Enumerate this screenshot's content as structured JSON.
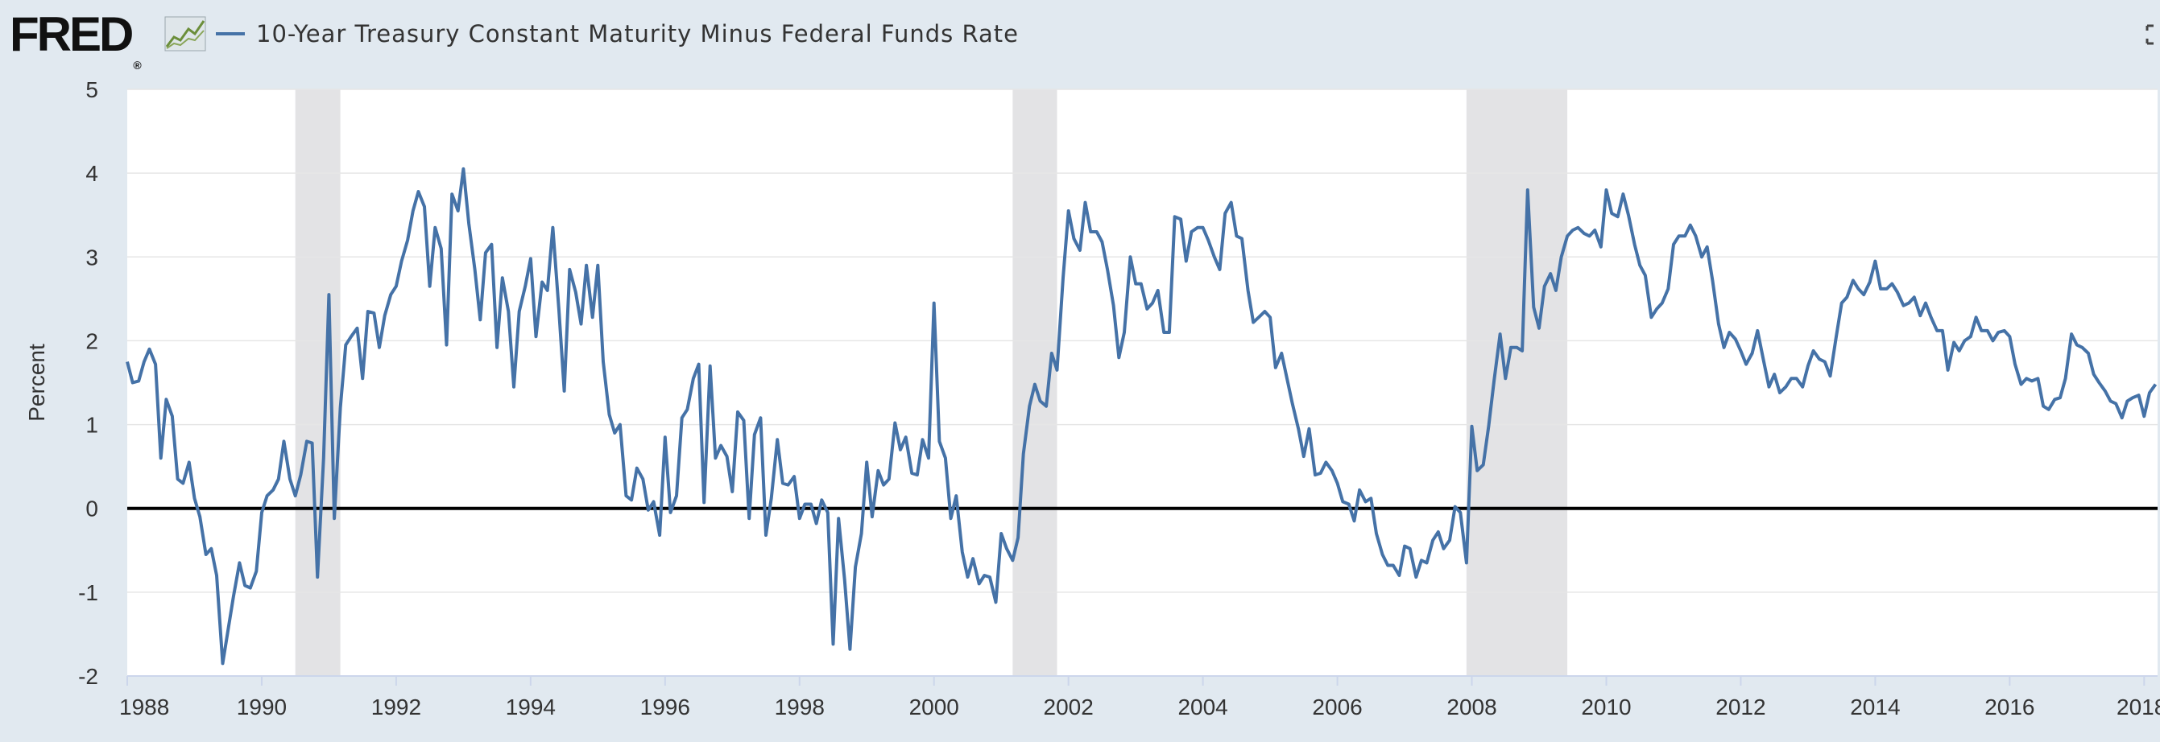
{
  "header": {
    "logo_text": "FRED",
    "logo_reg": "®",
    "title": "10-Year Treasury Constant Maturity Minus Federal Funds Rate"
  },
  "icons": [
    "fred-logo",
    "sparkline-icon",
    "fullscreen-icon"
  ],
  "colors": {
    "series": "#4572a7",
    "plot_bg": "#ffffff",
    "page_bg": "#e1e9f0",
    "recession": "#e3e3e5",
    "zero_line": "#000000"
  },
  "chart_data": {
    "type": "line",
    "title": "10-Year Treasury Constant Maturity Minus Federal Funds Rate",
    "xlabel": "",
    "ylabel": "Percent",
    "xlim": [
      1988,
      2018.2
    ],
    "ylim": [
      -2,
      5
    ],
    "yticks": [
      -2,
      -1,
      0,
      1,
      2,
      3,
      4,
      5
    ],
    "xticks": [
      1988,
      1990,
      1992,
      1994,
      1996,
      1998,
      2000,
      2002,
      2004,
      2006,
      2008,
      2010,
      2012,
      2014,
      2016,
      2018
    ],
    "grid": true,
    "recessions": [
      [
        1990.5,
        1991.17
      ],
      [
        2001.17,
        2001.83
      ],
      [
        2007.92,
        2009.42
      ]
    ],
    "series": [
      {
        "name": "10-Year Treasury Constant Maturity Minus Federal Funds Rate",
        "x": [
          1988.0,
          1988.08,
          1988.17,
          1988.25,
          1988.33,
          1988.42,
          1988.5,
          1988.58,
          1988.67,
          1988.75,
          1988.83,
          1988.92,
          1989.0,
          1989.08,
          1989.17,
          1989.25,
          1989.33,
          1989.42,
          1989.5,
          1989.58,
          1989.67,
          1989.75,
          1989.83,
          1989.92,
          1990.0,
          1990.08,
          1990.17,
          1990.25,
          1990.33,
          1990.42,
          1990.5,
          1990.58,
          1990.67,
          1990.75,
          1990.83,
          1990.92,
          1991.0,
          1991.08,
          1991.17,
          1991.25,
          1991.33,
          1991.42,
          1991.5,
          1991.58,
          1991.67,
          1991.75,
          1991.83,
          1991.92,
          1992.0,
          1992.08,
          1992.17,
          1992.25,
          1992.33,
          1992.42,
          1992.5,
          1992.58,
          1992.67,
          1992.75,
          1992.83,
          1992.92,
          1993.0,
          1993.08,
          1993.17,
          1993.25,
          1993.33,
          1993.42,
          1993.5,
          1993.58,
          1993.67,
          1993.75,
          1993.83,
          1993.92,
          1994.0,
          1994.08,
          1994.17,
          1994.25,
          1994.33,
          1994.42,
          1994.5,
          1994.58,
          1994.67,
          1994.75,
          1994.83,
          1994.92,
          1995.0,
          1995.08,
          1995.17,
          1995.25,
          1995.33,
          1995.42,
          1995.5,
          1995.58,
          1995.67,
          1995.75,
          1995.83,
          1995.92,
          1996.0,
          1996.08,
          1996.17,
          1996.25,
          1996.33,
          1996.42,
          1996.5,
          1996.58,
          1996.67,
          1996.75,
          1996.83,
          1996.92,
          1997.0,
          1997.08,
          1997.17,
          1997.25,
          1997.33,
          1997.42,
          1997.5,
          1997.58,
          1997.67,
          1997.75,
          1997.83,
          1997.92,
          1998.0,
          1998.08,
          1998.17,
          1998.25,
          1998.33,
          1998.42,
          1998.5,
          1998.58,
          1998.67,
          1998.75,
          1998.83,
          1998.92,
          1999.0,
          1999.08,
          1999.17,
          1999.25,
          1999.33,
          1999.42,
          1999.5,
          1999.58,
          1999.67,
          1999.75,
          1999.83,
          1999.92,
          2000.0,
          2000.08,
          2000.17,
          2000.25,
          2000.33,
          2000.42,
          2000.5,
          2000.58,
          2000.67,
          2000.75,
          2000.83,
          2000.92,
          2001.0,
          2001.08,
          2001.17,
          2001.25,
          2001.33,
          2001.42,
          2001.5,
          2001.58,
          2001.67,
          2001.75,
          2001.83,
          2001.92,
          2002.0,
          2002.08,
          2002.17,
          2002.25,
          2002.33,
          2002.42,
          2002.5,
          2002.58,
          2002.67,
          2002.75,
          2002.83,
          2002.92,
          2003.0,
          2003.08,
          2003.17,
          2003.25,
          2003.33,
          2003.42,
          2003.5,
          2003.58,
          2003.67,
          2003.75,
          2003.83,
          2003.92,
          2004.0,
          2004.08,
          2004.17,
          2004.25,
          2004.33,
          2004.42,
          2004.5,
          2004.58,
          2004.67,
          2004.75,
          2004.83,
          2004.92,
          2005.0,
          2005.08,
          2005.17,
          2005.25,
          2005.33,
          2005.42,
          2005.5,
          2005.58,
          2005.67,
          2005.75,
          2005.83,
          2005.92,
          2006.0,
          2006.08,
          2006.17,
          2006.25,
          2006.33,
          2006.42,
          2006.5,
          2006.58,
          2006.67,
          2006.75,
          2006.83,
          2006.92,
          2007.0,
          2007.08,
          2007.17,
          2007.25,
          2007.33,
          2007.42,
          2007.5,
          2007.58,
          2007.67,
          2007.75,
          2007.83,
          2007.92,
          2008.0,
          2008.08,
          2008.17,
          2008.25,
          2008.33,
          2008.42,
          2008.5,
          2008.58,
          2008.67,
          2008.75,
          2008.83,
          2008.92,
          2009.0,
          2009.08,
          2009.17,
          2009.25,
          2009.33,
          2009.42,
          2009.5,
          2009.58,
          2009.67,
          2009.75,
          2009.83,
          2009.92,
          2010.0,
          2010.08,
          2010.17,
          2010.25,
          2010.33,
          2010.42,
          2010.5,
          2010.58,
          2010.67,
          2010.75,
          2010.83,
          2010.92,
          2011.0,
          2011.08,
          2011.17,
          2011.25,
          2011.33,
          2011.42,
          2011.5,
          2011.58,
          2011.67,
          2011.75,
          2011.83,
          2011.92,
          2012.0,
          2012.08,
          2012.17,
          2012.25,
          2012.33,
          2012.42,
          2012.5,
          2012.58,
          2012.67,
          2012.75,
          2012.83,
          2012.92,
          2013.0,
          2013.08,
          2013.17,
          2013.25,
          2013.33,
          2013.42,
          2013.5,
          2013.58,
          2013.67,
          2013.75,
          2013.83,
          2013.92,
          2014.0,
          2014.08,
          2014.17,
          2014.25,
          2014.33,
          2014.42,
          2014.5,
          2014.58,
          2014.67,
          2014.75,
          2014.83,
          2014.92,
          2015.0,
          2015.08,
          2015.17,
          2015.25,
          2015.33,
          2015.42,
          2015.5,
          2015.58,
          2015.67,
          2015.75,
          2015.83,
          2015.92,
          2016.0,
          2016.08,
          2016.17,
          2016.25,
          2016.33,
          2016.42,
          2016.5,
          2016.58,
          2016.67,
          2016.75,
          2016.83,
          2016.92,
          2017.0,
          2017.08,
          2017.17,
          2017.25,
          2017.33,
          2017.42,
          2017.5,
          2017.58,
          2017.67,
          2017.75,
          2017.83,
          2017.92,
          2018.0,
          2018.08,
          2018.17
        ],
        "values": [
          1.75,
          1.5,
          1.52,
          1.75,
          1.9,
          1.72,
          0.6,
          1.3,
          1.1,
          0.35,
          0.3,
          0.55,
          0.12,
          -0.1,
          -0.55,
          -0.48,
          -0.8,
          -1.85,
          -1.45,
          -1.05,
          -0.65,
          -0.92,
          -0.95,
          -0.75,
          -0.05,
          0.15,
          0.22,
          0.35,
          0.8,
          0.35,
          0.15,
          0.4,
          0.8,
          0.78,
          -0.82,
          0.6,
          2.55,
          -0.12,
          1.2,
          1.95,
          2.05,
          2.15,
          1.55,
          2.35,
          2.33,
          1.92,
          2.3,
          2.55,
          2.65,
          2.95,
          3.2,
          3.55,
          3.78,
          3.6,
          2.65,
          3.35,
          3.1,
          1.95,
          3.75,
          3.55,
          4.05,
          3.4,
          2.85,
          2.25,
          3.05,
          3.15,
          1.92,
          2.75,
          2.35,
          1.45,
          2.35,
          2.65,
          2.98,
          2.05,
          2.7,
          2.6,
          3.35,
          2.38,
          1.4,
          2.85,
          2.58,
          2.2,
          2.9,
          2.28,
          2.9,
          1.75,
          1.12,
          0.9,
          1.0,
          0.15,
          0.1,
          0.48,
          0.35,
          -0.02,
          0.08,
          -0.32,
          0.85,
          -0.05,
          0.15,
          1.08,
          1.18,
          1.55,
          1.72,
          0.07,
          1.7,
          0.6,
          0.75,
          0.62,
          0.2,
          1.15,
          1.05,
          -0.12,
          0.88,
          1.08,
          -0.32,
          0.12,
          0.82,
          0.3,
          0.28,
          0.38,
          -0.12,
          0.05,
          0.05,
          -0.18,
          0.1,
          -0.05,
          -1.62,
          -0.12,
          -0.85,
          -1.68,
          -0.7,
          -0.3,
          0.55,
          -0.1,
          0.45,
          0.28,
          0.35,
          1.02,
          0.7,
          0.85,
          0.42,
          0.4,
          0.82,
          0.6,
          2.45,
          0.8,
          0.6,
          -0.12,
          0.15,
          -0.52,
          -0.82,
          -0.6,
          -0.9,
          -0.8,
          -0.82,
          -1.12,
          -0.3,
          -0.48,
          -0.62,
          -0.35,
          0.65,
          1.22,
          1.48,
          1.28,
          1.22,
          1.85,
          1.65,
          2.75,
          3.55,
          3.22,
          3.08,
          3.65,
          3.3,
          3.3,
          3.18,
          2.85,
          2.42,
          1.8,
          2.1,
          3.0,
          2.68,
          2.68,
          2.38,
          2.45,
          2.6,
          2.1,
          2.1,
          3.48,
          3.45,
          2.95,
          3.3,
          3.35,
          3.35,
          3.2,
          3.0,
          2.85,
          3.52,
          3.65,
          3.25,
          3.22,
          2.6,
          2.22,
          2.28,
          2.35,
          2.28,
          1.68,
          1.85,
          1.55,
          1.25,
          0.95,
          0.62,
          0.95,
          0.4,
          0.42,
          0.55,
          0.45,
          0.3,
          0.08,
          0.05,
          -0.15,
          0.22,
          0.08,
          0.12,
          -0.3,
          -0.55,
          -0.68,
          -0.68,
          -0.8,
          -0.45,
          -0.48,
          -0.82,
          -0.62,
          -0.65,
          -0.38,
          -0.28,
          -0.48,
          -0.38,
          0.02,
          -0.05,
          -0.65,
          0.98,
          0.45,
          0.52,
          0.98,
          1.52,
          2.08,
          1.55,
          1.92,
          1.92,
          1.88,
          3.8,
          2.4,
          2.15,
          2.65,
          2.8,
          2.6,
          3.0,
          3.25,
          3.32,
          3.35,
          3.28,
          3.25,
          3.32,
          3.12,
          3.8,
          3.52,
          3.48,
          3.75,
          3.5,
          3.15,
          2.9,
          2.78,
          2.28,
          2.38,
          2.45,
          2.62,
          3.15,
          3.25,
          3.25,
          3.38,
          3.25,
          3.0,
          3.12,
          2.72,
          2.2,
          1.92,
          2.1,
          2.02,
          1.88,
          1.72,
          1.85,
          2.12,
          1.8,
          1.45,
          1.6,
          1.38,
          1.45,
          1.55,
          1.55,
          1.45,
          1.7,
          1.88,
          1.78,
          1.75,
          1.58,
          2.05,
          2.45,
          2.52,
          2.72,
          2.62,
          2.55,
          2.7,
          2.95,
          2.62,
          2.62,
          2.68,
          2.58,
          2.42,
          2.45,
          2.52,
          2.3,
          2.45,
          2.28,
          2.12,
          2.12,
          1.65,
          1.98,
          1.88,
          2.0,
          2.05,
          2.28,
          2.12,
          2.12,
          2.0,
          2.1,
          2.12,
          2.05,
          1.72,
          1.48,
          1.55,
          1.52,
          1.55,
          1.22,
          1.18,
          1.3,
          1.32,
          1.55,
          2.08,
          1.95,
          1.92,
          1.85,
          1.6,
          1.5,
          1.4,
          1.28,
          1.25,
          1.08,
          1.28,
          1.32,
          1.35,
          1.1,
          1.38,
          1.48
        ]
      }
    ]
  }
}
